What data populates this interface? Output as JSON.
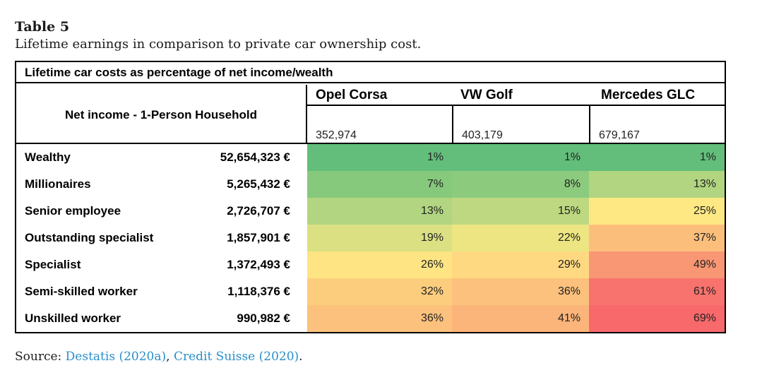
{
  "caption": {
    "number": "Table 5",
    "description": "Lifetime earnings in comparison to private car ownership cost."
  },
  "table": {
    "title": "Lifetime car costs as percentage of net income/wealth",
    "row_header": "Net income - 1-Person Household",
    "cars": [
      {
        "name": "Opel Corsa",
        "cost": "352,974"
      },
      {
        "name": "VW Golf",
        "cost": "403,179"
      },
      {
        "name": "Mercedes GLC",
        "cost": "679,167"
      }
    ],
    "rows": [
      {
        "label": "Wealthy",
        "income": "52,654,323 €",
        "values": [
          "1%",
          "1%",
          "1%"
        ],
        "colors": [
          "#63be7b",
          "#63be7b",
          "#63be7b"
        ]
      },
      {
        "label": "Millionaires",
        "income": "5,265,432 €",
        "values": [
          "7%",
          "8%",
          "13%"
        ],
        "colors": [
          "#86c97d",
          "#8ccb7e",
          "#b1d580"
        ]
      },
      {
        "label": "Senior employee",
        "income": "2,726,707 €",
        "values": [
          "13%",
          "15%",
          "25%"
        ],
        "colors": [
          "#b1d580",
          "#bdd881",
          "#fee883"
        ]
      },
      {
        "label": "Outstanding specialist",
        "income": "1,857,901 €",
        "values": [
          "19%",
          "22%",
          "37%"
        ],
        "colors": [
          "#dbe182",
          "#ede582",
          "#fcbf7b"
        ]
      },
      {
        "label": "Specialist",
        "income": "1,372,493 €",
        "values": [
          "26%",
          "29%",
          "49%"
        ],
        "colors": [
          "#fee482",
          "#fed981",
          "#f99673"
        ]
      },
      {
        "label": "Semi-skilled worker",
        "income": "1,118,376 €",
        "values": [
          "32%",
          "36%",
          "61%"
        ],
        "colors": [
          "#fdcd7e",
          "#fcc17c",
          "#f8736d"
        ]
      },
      {
        "label": "Unskilled worker",
        "income": "990,982 €",
        "values": [
          "36%",
          "41%",
          "69%"
        ],
        "colors": [
          "#fcc17c",
          "#fbb479",
          "#f8696b"
        ]
      }
    ]
  },
  "source": {
    "prefix": "Source: ",
    "links": [
      "Destatis (2020a)",
      "Credit Suisse (2020)"
    ],
    "separator": ", ",
    "suffix": "."
  }
}
